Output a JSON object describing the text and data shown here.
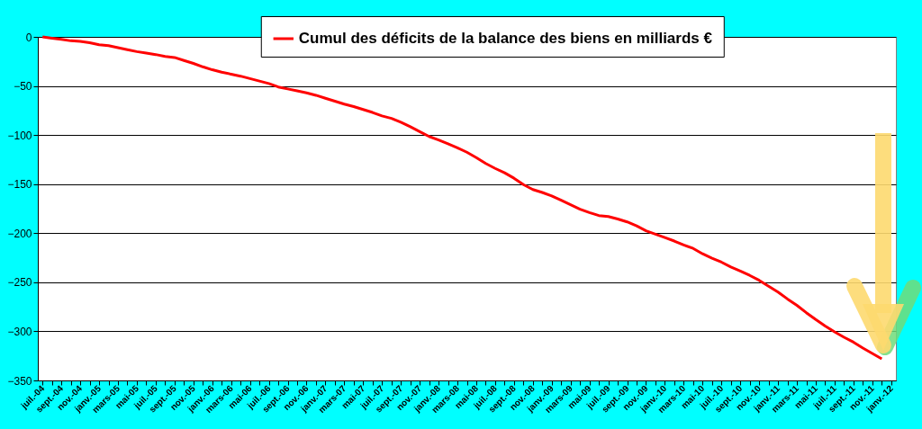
{
  "chart_data": {
    "type": "line",
    "categories": [
      "juil.-04",
      null,
      "sept.-04",
      null,
      "nov.-04",
      null,
      "janv.-05",
      null,
      "mars-05",
      null,
      "mai-05",
      null,
      "juil.-05",
      null,
      "sept.-05",
      null,
      "nov.-05",
      null,
      "janv.-06",
      null,
      "mars-06",
      null,
      "mai-06",
      null,
      "juil.-06",
      null,
      "sept.-06",
      null,
      "nov.-06",
      null,
      "janv.-07",
      null,
      "mars-07",
      null,
      "mai-07",
      null,
      "juil.-07",
      null,
      "sept.-07",
      null,
      "nov.-07",
      null,
      "janv.-08",
      null,
      "mars-08",
      null,
      "mai-08",
      null,
      "juil.-08",
      null,
      "sept.-08",
      null,
      "nov.-08",
      null,
      "janv.-09",
      null,
      "mars-09",
      null,
      "mai-09",
      null,
      "juil.-09",
      null,
      "sept.-09",
      null,
      "nov.-09",
      null,
      "janv.-10",
      null,
      "mars-10",
      null,
      "mai-10",
      null,
      "juil.-10",
      null,
      "sept.-10",
      null,
      "nov.-10",
      null,
      "janv.-11",
      null,
      "mars-11",
      null,
      "mai-11",
      null,
      "juil.-11",
      null,
      "sept.-11",
      null,
      "nov.-11",
      null,
      "janv.-12"
    ],
    "series": [
      {
        "name": "Cumul des déficits de la balance des biens en milliards €",
        "color": "#ff0000",
        "values": [
          0,
          -1.3,
          -2.5,
          -4,
          -4.5,
          -6,
          -8,
          -9,
          -11,
          -13,
          -15,
          -16.5,
          -18,
          -20,
          -21,
          -24,
          -27,
          -30.5,
          -33.5,
          -36,
          -38,
          -40,
          -42.5,
          -45,
          -47.5,
          -51,
          -53,
          -55,
          -57,
          -59.5,
          -62.5,
          -65.5,
          -68.5,
          -71,
          -74,
          -77,
          -80.5,
          -83,
          -87,
          -91.5,
          -96.5,
          -101.5,
          -105,
          -109,
          -113,
          -117.5,
          -123,
          -129,
          -134,
          -138.5,
          -144,
          -150.5,
          -155.5,
          -158.5,
          -162,
          -166.5,
          -171,
          -175.5,
          -179,
          -182,
          -183,
          -185.5,
          -188.5,
          -192.5,
          -197.5,
          -201,
          -204.5,
          -208,
          -212,
          -215.5,
          -221,
          -225.5,
          -229.5,
          -234.5,
          -238.5,
          -243,
          -248,
          -254,
          -260,
          -267,
          -273.5,
          -281,
          -288,
          -294.5,
          -300.5,
          -306,
          -311,
          -317,
          -322.5,
          -328,
          null
        ]
      }
    ],
    "ylim": [
      -350,
      0
    ],
    "yticks": [
      -350,
      -300,
      -250,
      -200,
      -150,
      -100,
      -50,
      0
    ],
    "grid": "y",
    "legend": "top",
    "marker": "none",
    "line_style": "solid"
  }
}
